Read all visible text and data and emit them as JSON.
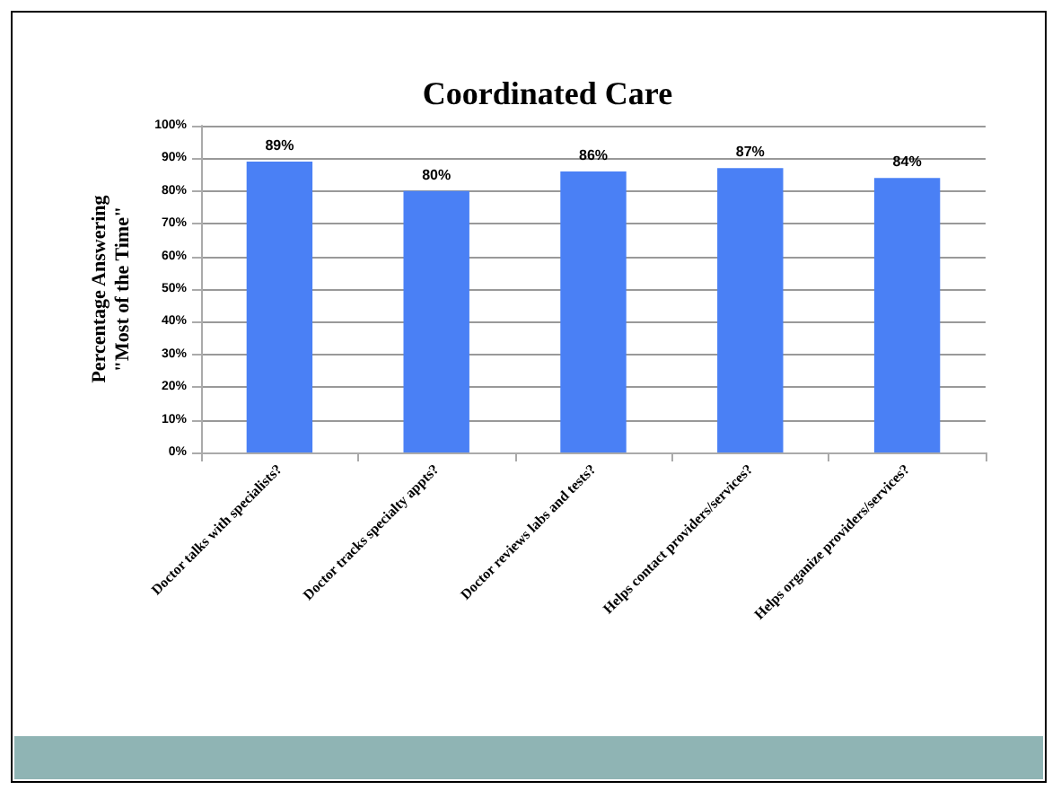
{
  "chart_data": {
    "type": "bar",
    "title": "Coordinated Care",
    "ylabel": "Percentage Answering\n\"Most of the Time\"",
    "categories": [
      "Doctor talks with specialists?",
      "Doctor tracks specialty appts?",
      "Doctor reviews labs and tests?",
      "Helps contact providers/services?",
      "Helps organize providers/services?"
    ],
    "values": [
      89,
      80,
      86,
      87,
      84
    ],
    "value_labels": [
      "89%",
      "80%",
      "86%",
      "87%",
      "84%"
    ],
    "color": "#4a80f5",
    "ylim": [
      0,
      100
    ],
    "yticks": [
      {
        "value": 0,
        "label": "0%"
      },
      {
        "value": 10,
        "label": "10%"
      },
      {
        "value": 20,
        "label": "20%"
      },
      {
        "value": 30,
        "label": "30%"
      },
      {
        "value": 40,
        "label": "40%"
      },
      {
        "value": 50,
        "label": "50%"
      },
      {
        "value": 60,
        "label": "60%"
      },
      {
        "value": 70,
        "label": "70%"
      },
      {
        "value": 80,
        "label": "80%"
      },
      {
        "value": 90,
        "label": "90%"
      },
      {
        "value": 100,
        "label": "100%"
      }
    ],
    "grid": "y"
  }
}
